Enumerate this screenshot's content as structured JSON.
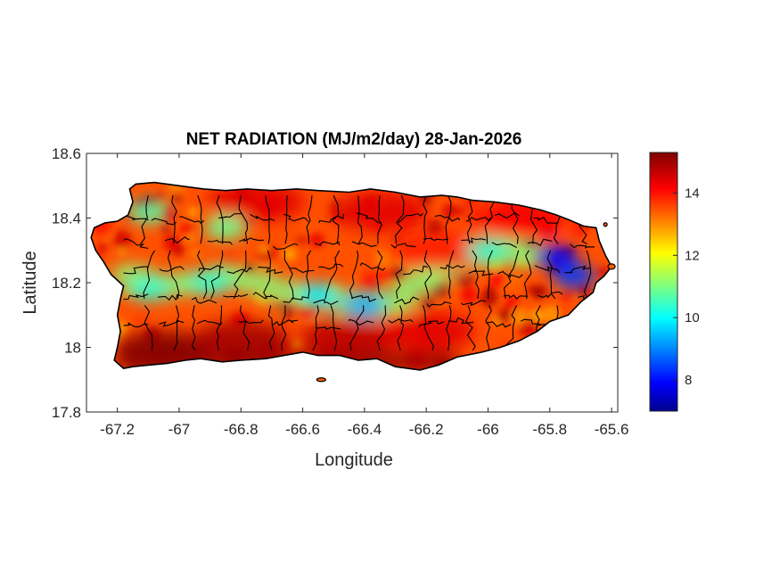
{
  "chart_data": {
    "type": "heatmap",
    "title": "NET RADIATION (MJ/m2/day) 28-Jan-2026",
    "xlabel": "Longitude",
    "ylabel": "Latitude",
    "xlim": [
      -67.3,
      -65.58
    ],
    "ylim": [
      17.8,
      18.6
    ],
    "xticks": [
      -67.2,
      -67,
      -66.8,
      -66.6,
      -66.4,
      -66.2,
      -66,
      -65.8,
      -65.6
    ],
    "yticks": [
      17.8,
      18,
      18.2,
      18.4,
      18.6
    ],
    "xtick_labels": [
      "-67.2",
      "-67",
      "-66.8",
      "-66.6",
      "-66.4",
      "-66.2",
      "-66",
      "-65.8",
      "-65.6"
    ],
    "ytick_labels": [
      "17.8",
      "18",
      "18.2",
      "18.4",
      "18.6"
    ],
    "colorbar": {
      "colormap": "jet",
      "range": [
        7,
        15.3
      ],
      "ticks": [
        8,
        10,
        12,
        14
      ],
      "tick_labels": [
        "8",
        "10",
        "12",
        "14"
      ]
    },
    "colors": {
      "boundary": "#000000",
      "axes": "#262626"
    },
    "field_summary": {
      "min": 7.2,
      "max": 15.3,
      "low_regions": [
        {
          "lon": -65.78,
          "lat": 18.28,
          "value": 8
        },
        {
          "lon": -65.72,
          "lat": 18.22,
          "value": 8.5
        },
        {
          "lon": -66.4,
          "lat": 18.13,
          "value": 9.5
        },
        {
          "lon": -66.55,
          "lat": 18.16,
          "value": 10
        },
        {
          "lon": -66.9,
          "lat": 18.2,
          "value": 10.5
        },
        {
          "lon": -67.1,
          "lat": 18.18,
          "value": 10.5
        },
        {
          "lon": -67.1,
          "lat": 18.42,
          "value": 10.8
        },
        {
          "lon": -66.85,
          "lat": 18.37,
          "value": 11
        },
        {
          "lon": -66.0,
          "lat": 18.3,
          "value": 10.5
        }
      ],
      "high_regions": [
        {
          "lon": -67.05,
          "lat": 17.99,
          "value": 15.3
        },
        {
          "lon": -66.8,
          "lat": 18.02,
          "value": 15
        },
        {
          "lon": -66.45,
          "lat": 18.03,
          "value": 14.8
        },
        {
          "lon": -66.2,
          "lat": 18.05,
          "value": 14.5
        },
        {
          "lon": -66.75,
          "lat": 18.45,
          "value": 14.5
        },
        {
          "lon": -66.35,
          "lat": 18.42,
          "value": 14.5
        },
        {
          "lon": -66.15,
          "lat": 18.3,
          "value": 14
        },
        {
          "lon": -65.9,
          "lat": 18.4,
          "value": 14.3
        }
      ]
    }
  }
}
